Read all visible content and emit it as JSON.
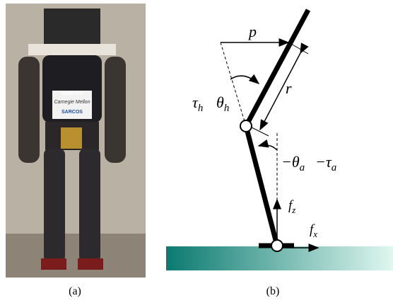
{
  "panels": [
    {
      "label": "(a)",
      "photo_texts": [
        "SARCOS",
        "Carnegie Mellon",
        "SARCOS"
      ]
    },
    {
      "label": "(b)",
      "symbols": {
        "p": "p",
        "r": "r",
        "tau_h": {
          "base": "τ",
          "sub": "h"
        },
        "theta_h": {
          "base": "θ",
          "sub": "h"
        },
        "theta_a": {
          "base": "−θ",
          "sub": "a"
        },
        "tau_a": {
          "base": "−τ",
          "sub": "a"
        },
        "f_z": {
          "base": "f",
          "sub": "z"
        },
        "f_x": {
          "base": "f",
          "sub": "x"
        }
      }
    }
  ]
}
